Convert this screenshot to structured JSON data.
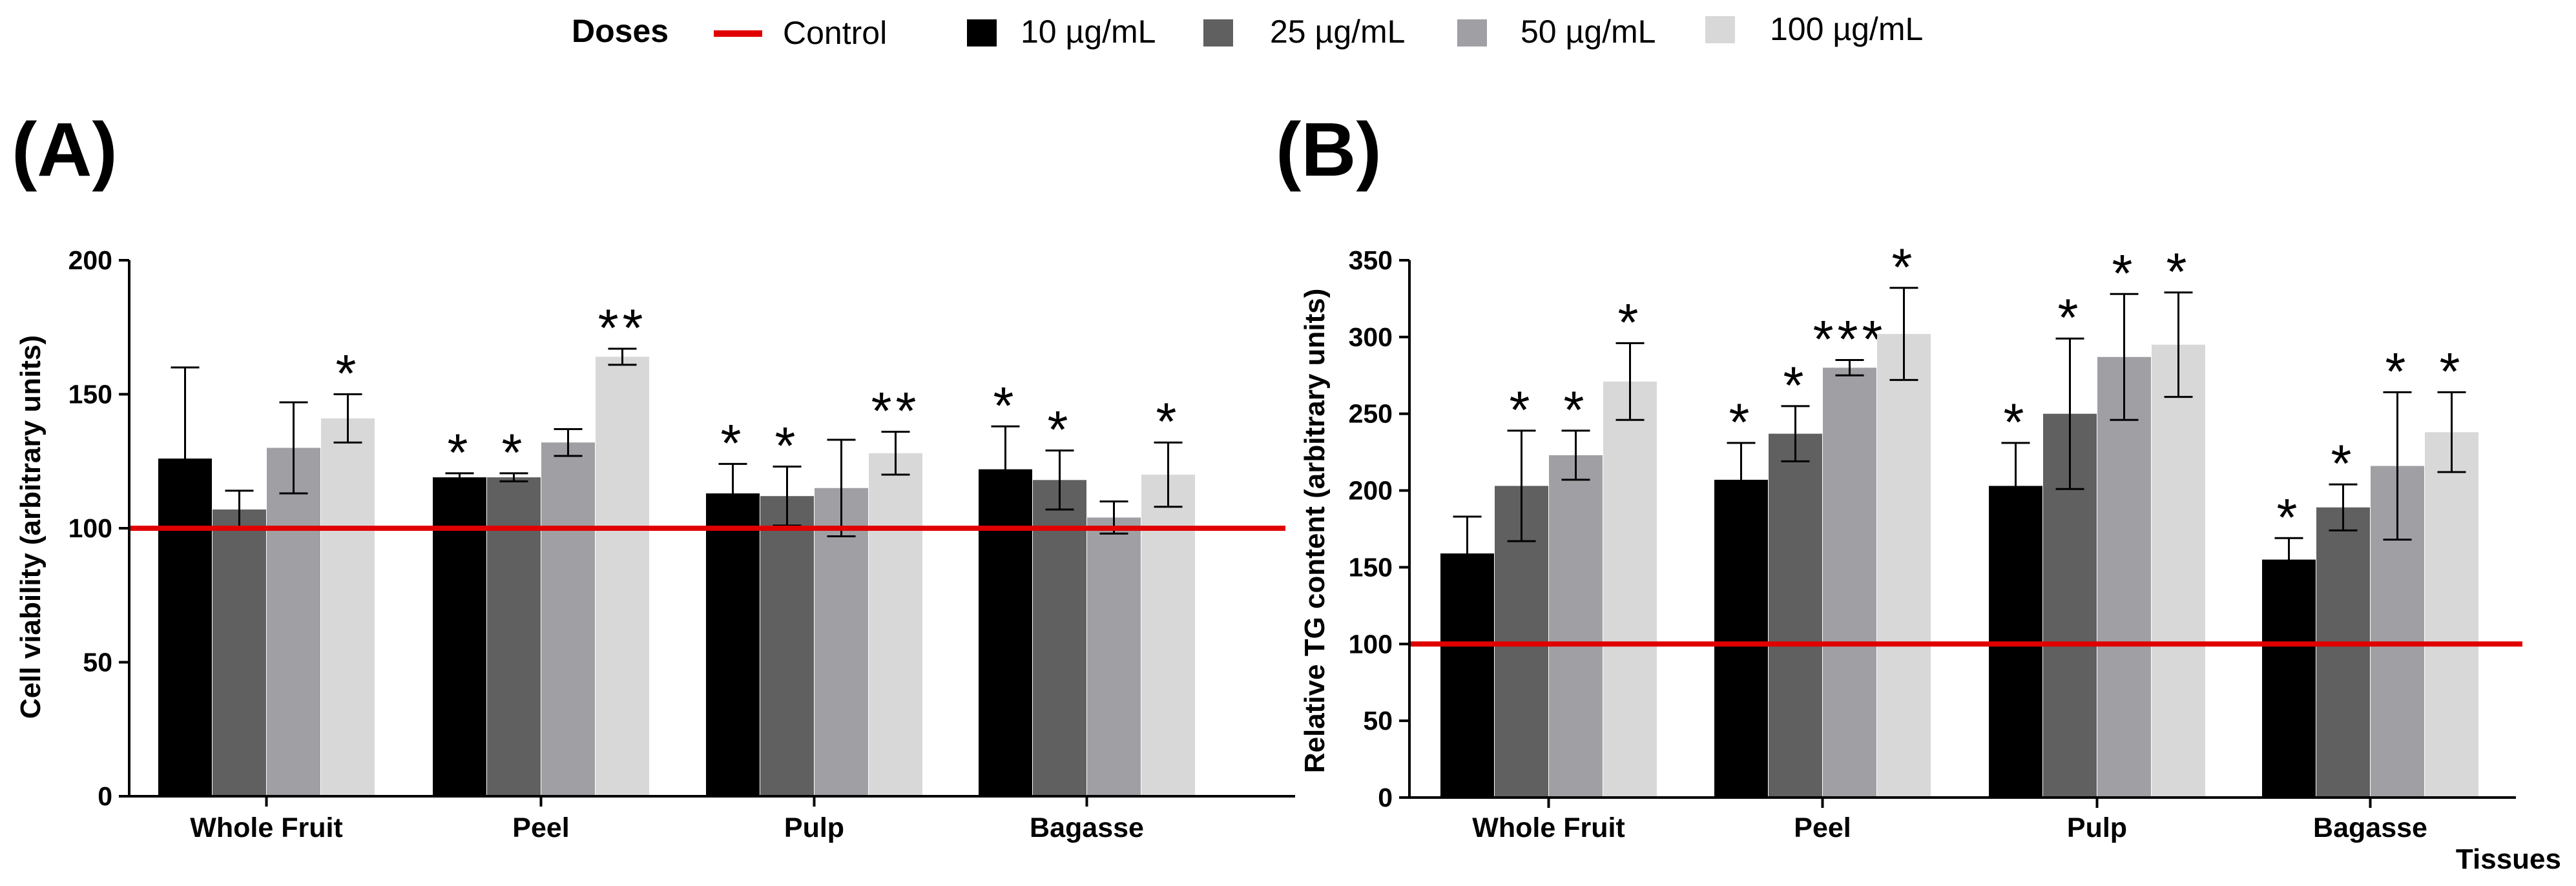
{
  "legend": {
    "title": "Doses",
    "control_label": "Control",
    "control_color": "#e00000",
    "items": [
      {
        "label": "10 µg/mL",
        "color": "#000000"
      },
      {
        "label": "25 µg/mL",
        "color": "#606060"
      },
      {
        "label": "50 µg/mL",
        "color": "#a0a0a4"
      },
      {
        "label": "100 µg/mL",
        "color": "#d8d8d8"
      }
    ]
  },
  "chart_data": [
    {
      "type": "bar",
      "panel_label": "(A)",
      "ylabel": "Cell viability (arbitrary units)",
      "xlabel": "",
      "categories": [
        "Whole Fruit",
        "Peel",
        "Pulp",
        "Bagasse"
      ],
      "ylim": [
        0,
        200
      ],
      "yticks": [
        0,
        50,
        100,
        150,
        200
      ],
      "control_value": 100,
      "series": [
        {
          "name": "10 µg/mL",
          "values": [
            126,
            119,
            113,
            122
          ],
          "errors": [
            34,
            1.5,
            11,
            16
          ],
          "sig": [
            "",
            "*",
            "*",
            "*"
          ]
        },
        {
          "name": "25 µg/mL",
          "values": [
            107,
            119,
            112,
            118
          ],
          "errors": [
            7,
            1.5,
            11,
            11
          ],
          "sig": [
            "",
            "*",
            "*",
            "*"
          ]
        },
        {
          "name": "50 µg/mL",
          "values": [
            130,
            132,
            115,
            104
          ],
          "errors": [
            17,
            5,
            18,
            6
          ],
          "sig": [
            "",
            "",
            "",
            ""
          ]
        },
        {
          "name": "100 µg/mL",
          "values": [
            141,
            164,
            128,
            120
          ],
          "errors": [
            9,
            3,
            8,
            12
          ],
          "sig": [
            "*",
            "**",
            "**",
            "*"
          ]
        }
      ]
    },
    {
      "type": "bar",
      "panel_label": "(B)",
      "ylabel": "Relative TG content (arbitrary units)",
      "xlabel": "Tissues",
      "categories": [
        "Whole Fruit",
        "Peel",
        "Pulp",
        "Bagasse"
      ],
      "ylim": [
        0,
        350
      ],
      "yticks": [
        0,
        50,
        100,
        150,
        200,
        250,
        300,
        350
      ],
      "control_value": 100,
      "series": [
        {
          "name": "10 µg/mL",
          "values": [
            159,
            207,
            203,
            155
          ],
          "errors": [
            24,
            24,
            28,
            14
          ],
          "sig": [
            "",
            "*",
            "*",
            "*"
          ]
        },
        {
          "name": "25 µg/mL",
          "values": [
            203,
            237,
            250,
            189
          ],
          "errors": [
            36,
            18,
            49,
            15
          ],
          "sig": [
            "*",
            "*",
            "*",
            "*"
          ]
        },
        {
          "name": "50 µg/mL",
          "values": [
            223,
            280,
            287,
            216
          ],
          "errors": [
            16,
            5,
            41,
            48
          ],
          "sig": [
            "*",
            "***",
            "*",
            "*"
          ]
        },
        {
          "name": "100 µg/mL",
          "values": [
            271,
            302,
            295,
            238
          ],
          "errors": [
            25,
            30,
            34,
            26
          ],
          "sig": [
            "*",
            "*",
            "*",
            "*"
          ]
        }
      ]
    }
  ]
}
